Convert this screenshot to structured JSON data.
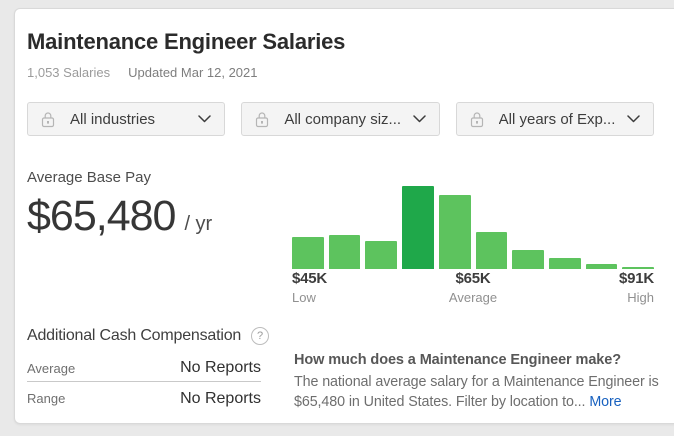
{
  "page": {
    "title": "Maintenance Engineer Salaries",
    "salaries_count": "1,053 Salaries",
    "updated": "Updated Mar 12, 2021"
  },
  "filters": [
    {
      "label": "All industries",
      "locked": true
    },
    {
      "label": "All company siz...",
      "locked": true
    },
    {
      "label": "All years of Exp...",
      "locked": true
    }
  ],
  "base_pay": {
    "label": "Average Base Pay",
    "amount": "$65,480",
    "period": "/ yr"
  },
  "chart_data": {
    "type": "bar",
    "values": [
      32,
      34,
      28,
      82,
      73,
      37,
      19,
      11,
      5,
      2
    ],
    "values_note": "relative bar heights in px; salary distribution histogram, counts unlabeled",
    "highlight_index": 3,
    "x_axis": {
      "low": {
        "value": "$45K",
        "caption": "Low"
      },
      "average": {
        "value": "$65K",
        "caption": "Average"
      },
      "high": {
        "value": "$91K",
        "caption": "High"
      }
    },
    "colors": {
      "bar": "#5dc35e",
      "highlight": "#1fa84a"
    },
    "legend": "none",
    "grid": false
  },
  "additional_cash": {
    "title": "Additional Cash Compensation",
    "rows": [
      {
        "label": "Average",
        "value": "No Reports"
      },
      {
        "label": "Range",
        "value": "No Reports"
      }
    ]
  },
  "about": {
    "question": "How much does a Maintenance Engineer make?",
    "body": "The national average salary for a Maintenance Engineer is $65,480 in United States. Filter by location to...",
    "more_label": "More",
    "link_color": "#1861bf"
  }
}
